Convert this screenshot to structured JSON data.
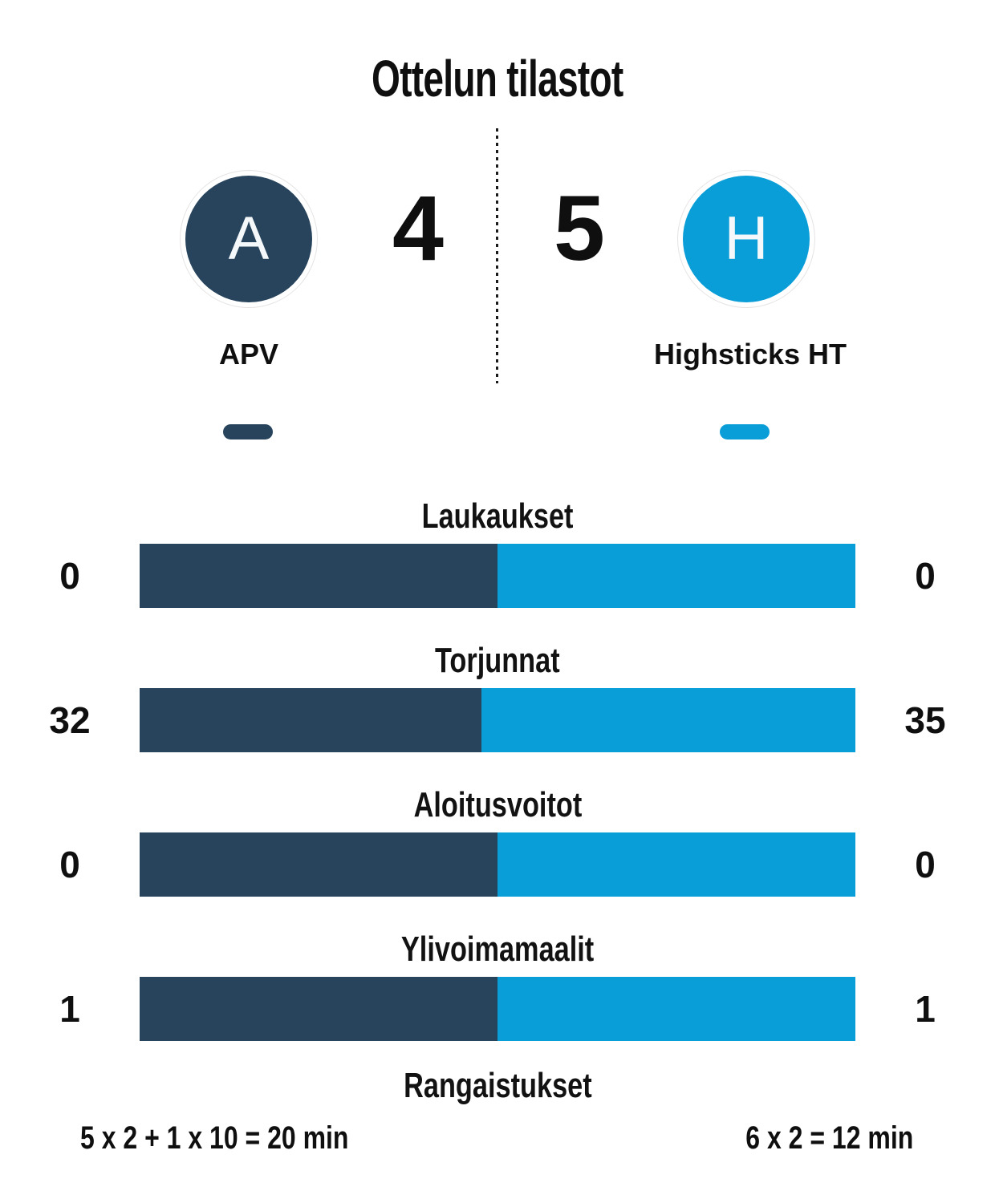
{
  "title": "Ottelun tilastot",
  "colors": {
    "home": "#27445c",
    "away": "#0a9ed8"
  },
  "teams": {
    "home": {
      "name": "APV",
      "initial": "A",
      "score": "4"
    },
    "away": {
      "name": "Highsticks HT",
      "initial": "H",
      "score": "5"
    }
  },
  "stats": [
    {
      "label": "Laukaukset",
      "home": "0",
      "away": "0"
    },
    {
      "label": "Torjunnat",
      "home": "32",
      "away": "35"
    },
    {
      "label": "Aloitusvoitot",
      "home": "0",
      "away": "0"
    },
    {
      "label": "Ylivoimamaalit",
      "home": "1",
      "away": "1"
    },
    {
      "label": "Rangaistukset",
      "home": "5 x 2 + 1 x 10 = 20 min",
      "away": "6 x 2 = 12 min"
    }
  ],
  "chart_data": {
    "type": "bar",
    "title": "Ottelun tilastot",
    "subtitle": "APV 4 - 5 Highsticks HT",
    "categories": [
      "Laukaukset",
      "Torjunnat",
      "Aloitusvoitot",
      "Ylivoimamaalit"
    ],
    "series": [
      {
        "name": "APV",
        "color": "#27445c",
        "values": [
          0,
          32,
          0,
          1
        ]
      },
      {
        "name": "Highsticks HT",
        "color": "#0a9ed8",
        "values": [
          0,
          35,
          0,
          1
        ]
      }
    ],
    "annotations": [
      {
        "category": "Rangaistukset",
        "home": "5 x 2 + 1 x 10 = 20 min",
        "away": "6 x 2 = 12 min"
      }
    ],
    "layout": "horizontal-split-bars, equal split when values are 0, label centered above each bar, values at both ends"
  }
}
